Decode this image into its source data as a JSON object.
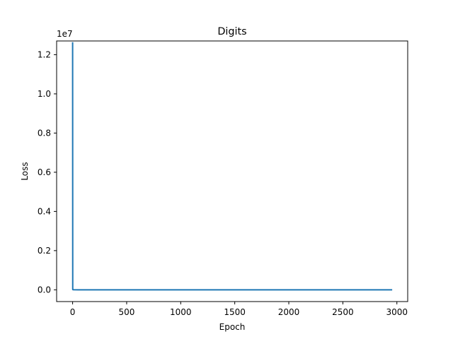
{
  "chart_data": {
    "type": "line",
    "title": "Digits",
    "xlabel": "Epoch",
    "ylabel": "Loss",
    "y_offset_label": "1e7",
    "y_scale_multiplier": 10000000,
    "xlim": [
      -148,
      3100
    ],
    "ylim": [
      -0.06,
      1.27
    ],
    "x_ticks": [
      0,
      500,
      1000,
      1500,
      2000,
      2500,
      3000
    ],
    "x_tick_labels": [
      "0",
      "500",
      "1000",
      "1500",
      "2000",
      "2500",
      "3000"
    ],
    "y_ticks": [
      0.0,
      0.2,
      0.4,
      0.6,
      0.8,
      1.0,
      1.2
    ],
    "y_tick_labels": [
      "0.0",
      "0.2",
      "0.4",
      "0.6",
      "0.8",
      "1.0",
      "1.2"
    ],
    "grid": false,
    "series": [
      {
        "color": "#1f77b4",
        "x": [
          0,
          1,
          2,
          5,
          10,
          50,
          100,
          500,
          1000,
          1500,
          2000,
          2500,
          2950
        ],
        "y": [
          1.26,
          0.003,
          0.001,
          0.0005,
          0.0002,
          0.0001,
          0.0001,
          0.0001,
          0.0001,
          0.0001,
          0.0001,
          0.0001,
          0.0001
        ]
      }
    ]
  }
}
